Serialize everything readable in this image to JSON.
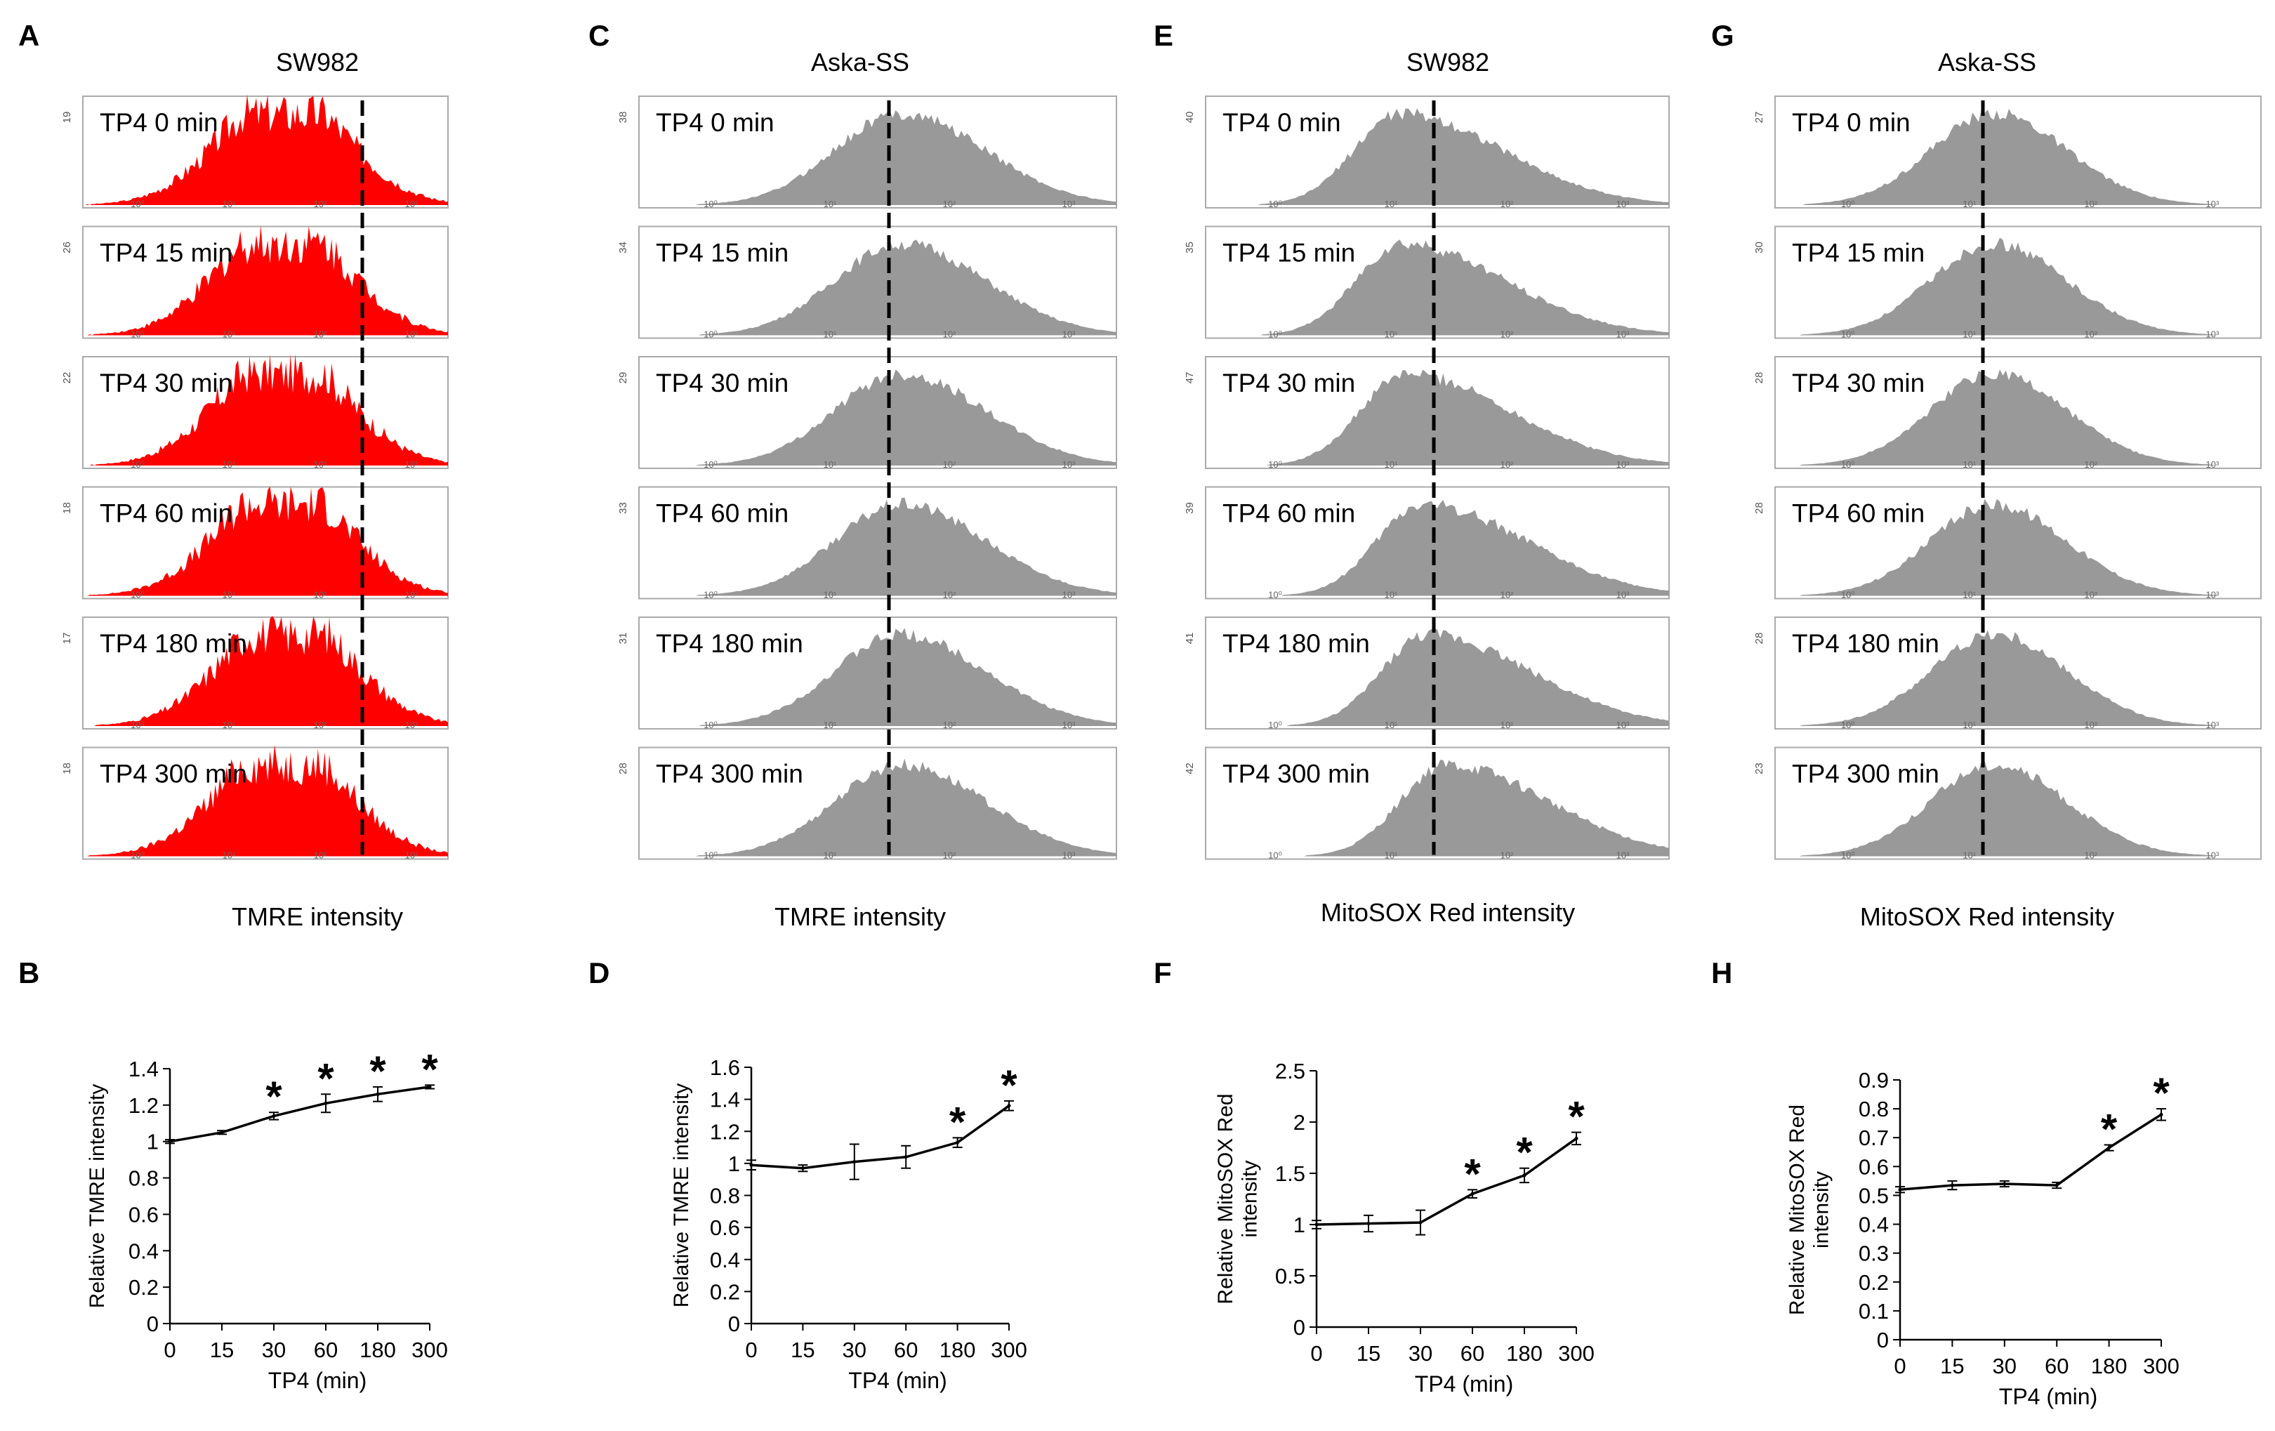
{
  "colors": {
    "red_fill": "#ff0000",
    "gray_fill": "#999999",
    "frame": "#aaaaaa",
    "line": "#000000"
  },
  "histogram_columns": [
    {
      "panel": "A",
      "title": "SW982",
      "xlabel": "TMRE intensity",
      "color": "#ff0000",
      "timepoints": [
        "TP4 0 min",
        "TP4 15 min",
        "TP4 30 min",
        "TP4 60 min",
        "TP4 180 min",
        "TP4 300 min"
      ],
      "counts": [
        "19",
        "26",
        "22",
        "18",
        "17",
        "18"
      ],
      "xticks": [
        "10⁰",
        "10¹",
        "10²",
        "10³"
      ]
    },
    {
      "panel": "C",
      "title": "Aska-SS",
      "xlabel": "TMRE intensity",
      "color": "#999999",
      "timepoints": [
        "TP4 0 min",
        "TP4 15 min",
        "TP4 30 min",
        "TP4 60 min",
        "TP4 180 min",
        "TP4 300 min"
      ],
      "counts": [
        "38",
        "34",
        "29",
        "33",
        "31",
        "28"
      ],
      "xticks": [
        "10⁰",
        "10¹",
        "10²",
        "10³"
      ]
    },
    {
      "panel": "E",
      "title": "SW982",
      "xlabel": "MitoSOX Red intensity",
      "color": "#999999",
      "timepoints": [
        "TP4 0 min",
        "TP4 15 min",
        "TP4 30 min",
        "TP4 60 min",
        "TP4 180 min",
        "TP4 300 min"
      ],
      "counts": [
        "40",
        "35",
        "47",
        "39",
        "41",
        "42"
      ],
      "xticks": [
        "10⁰",
        "10¹",
        "10²",
        "10³"
      ]
    },
    {
      "panel": "G",
      "title": "Aska-SS",
      "xlabel": "MitoSOX Red intensity",
      "color": "#999999",
      "timepoints": [
        "TP4 0 min",
        "TP4 15 min",
        "TP4 30 min",
        "TP4 60 min",
        "TP4 180 min",
        "TP4 300 min"
      ],
      "counts": [
        "27",
        "30",
        "28",
        "28",
        "28",
        "23"
      ],
      "xticks": [
        "10⁰",
        "10¹",
        "10²",
        "10³"
      ]
    }
  ],
  "chart_data": [
    {
      "panel": "B",
      "type": "line",
      "xlabel": "TP4 (min)",
      "ylabel": "Relative TMRE intensity",
      "categories": [
        "0",
        "15",
        "30",
        "60",
        "180",
        "300"
      ],
      "values": [
        1.0,
        1.05,
        1.14,
        1.21,
        1.26,
        1.3
      ],
      "errors": [
        0.01,
        0.01,
        0.02,
        0.05,
        0.04,
        0.01
      ],
      "significant": [
        false,
        false,
        true,
        true,
        true,
        true
      ],
      "ylim": [
        0,
        1.4
      ],
      "yticks": [
        "0",
        "0.2",
        "0.4",
        "0.6",
        "0.8",
        "1",
        "1.2",
        "1.4"
      ]
    },
    {
      "panel": "D",
      "type": "line",
      "xlabel": "TP4 (min)",
      "ylabel": "Relative TMRE intensity",
      "categories": [
        "0",
        "15",
        "30",
        "60",
        "180",
        "300"
      ],
      "values": [
        0.99,
        0.97,
        1.01,
        1.04,
        1.13,
        1.36
      ],
      "errors": [
        0.03,
        0.02,
        0.11,
        0.07,
        0.03,
        0.03
      ],
      "significant": [
        false,
        false,
        false,
        false,
        true,
        true
      ],
      "ylim": [
        0,
        1.6
      ],
      "yticks": [
        "0",
        "0.2",
        "0.4",
        "0.6",
        "0.8",
        "1",
        "1.2",
        "1.4",
        "1.6"
      ]
    },
    {
      "panel": "F",
      "type": "line",
      "xlabel": "TP4 (min)",
      "ylabel": "Relative MitoSOX Red intensity",
      "categories": [
        "0",
        "15",
        "30",
        "60",
        "180",
        "300"
      ],
      "values": [
        1.0,
        1.01,
        1.02,
        1.3,
        1.48,
        1.84
      ],
      "errors": [
        0.04,
        0.08,
        0.12,
        0.04,
        0.07,
        0.06
      ],
      "significant": [
        false,
        false,
        false,
        true,
        true,
        true
      ],
      "ylim": [
        0,
        2.5
      ],
      "yticks": [
        "0",
        "0.5",
        "1",
        "1.5",
        "2",
        "2.5"
      ]
    },
    {
      "panel": "H",
      "type": "line",
      "xlabel": "TP4 (min)",
      "ylabel": "Relative MitoSOX Red intensity",
      "categories": [
        "0",
        "15",
        "30",
        "60",
        "180",
        "300"
      ],
      "values": [
        0.52,
        0.535,
        0.54,
        0.535,
        0.665,
        0.78
      ],
      "errors": [
        0.01,
        0.015,
        0.01,
        0.01,
        0.01,
        0.02
      ],
      "significant": [
        false,
        false,
        false,
        false,
        true,
        true
      ],
      "ylim": [
        0,
        0.9
      ],
      "yticks": [
        "0",
        "0.1",
        "0.2",
        "0.3",
        "0.4",
        "0.5",
        "0.6",
        "0.7",
        "0.8",
        "0.9"
      ]
    }
  ]
}
